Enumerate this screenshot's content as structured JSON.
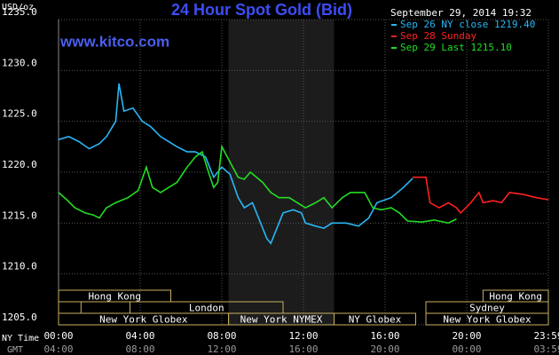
{
  "chart_data": {
    "type": "line",
    "title": "24 Hour Spot Gold (Bid)",
    "website": "www.kitco.com",
    "timestamp": "September 29, 2014 19:32",
    "y_label": "USD/oz",
    "x_label": "NY Time",
    "x2_label": "GMT",
    "xlim": [
      0,
      24
    ],
    "ylim": [
      1205,
      1235
    ],
    "yticks": [
      {
        "value": 1205,
        "label": "1205.0"
      },
      {
        "value": 1210,
        "label": "1210.0"
      },
      {
        "value": 1215,
        "label": "1215.0"
      },
      {
        "value": 1220,
        "label": "1220.0"
      },
      {
        "value": 1225,
        "label": "1225.0"
      },
      {
        "value": 1230,
        "label": "1230.0"
      },
      {
        "value": 1235,
        "label": "1235.0"
      }
    ],
    "xticks": [
      {
        "value": 0,
        "label": "00:00"
      },
      {
        "value": 4,
        "label": "04:00"
      },
      {
        "value": 8,
        "label": "08:00"
      },
      {
        "value": 12,
        "label": "12:00"
      },
      {
        "value": 16,
        "label": "16:00"
      },
      {
        "value": 20,
        "label": "20:00"
      },
      {
        "value": 24,
        "label": "23:59"
      }
    ],
    "x2ticks": [
      {
        "value": 0,
        "label": "04:00"
      },
      {
        "value": 4,
        "label": "08:00"
      },
      {
        "value": 8,
        "label": "12:00"
      },
      {
        "value": 12,
        "label": "16:00"
      },
      {
        "value": 16,
        "label": "20:00"
      },
      {
        "value": 20,
        "label": "00:00"
      },
      {
        "value": 24,
        "label": "03:59"
      }
    ],
    "grid": true,
    "highlight": [
      8.33,
      13.5
    ],
    "sessions": [
      [
        {
          "label": "Hong Kong",
          "start": 0,
          "end": 5.5
        },
        {
          "label": "Hong Kong",
          "start": 20.8,
          "end": 24
        }
      ],
      [
        {
          "start": 0,
          "end": 1.1
        },
        {
          "label": "London",
          "start": 3.5,
          "end": 11
        },
        {
          "label": "Sydney",
          "start": 18,
          "end": 24
        }
      ],
      [
        {
          "label": "New York Globex",
          "start": 0,
          "end": 8.33
        },
        {
          "label": "New York NYMEX",
          "start": 8.33,
          "end": 13.5
        },
        {
          "label": "NY Globex",
          "start": 13.5,
          "end": 17.5
        },
        {
          "label": "New York Globex",
          "start": 18,
          "end": 24
        }
      ]
    ],
    "series": [
      {
        "name": "Sep 26 NY close 1219.40",
        "color": "#29b6f6",
        "x": [
          0,
          0.5,
          1,
          1.5,
          2,
          2.35,
          2.8,
          2.96,
          3.2,
          3.65,
          4.1,
          4.5,
          5,
          5.4,
          5.8,
          6.3,
          6.7,
          7.2,
          7.6,
          8,
          8.4,
          8.8,
          9.1,
          9.5,
          9.9,
          10.2,
          10.4,
          10.7,
          11,
          11.5,
          11.9,
          12.1,
          12.6,
          13,
          13.4,
          14.1,
          14.7,
          15.2,
          15.6,
          16.3,
          16.9,
          17.35
        ],
        "values": [
          1223.2,
          1223.5,
          1223,
          1222.3,
          1222.8,
          1223.5,
          1225,
          1228.7,
          1226,
          1226.3,
          1225,
          1224.5,
          1223.5,
          1223,
          1222.5,
          1222,
          1222,
          1221.5,
          1219.5,
          1220.5,
          1219.8,
          1217.5,
          1216.5,
          1217,
          1215,
          1213.5,
          1213,
          1214.5,
          1216,
          1216.3,
          1216,
          1215,
          1214.7,
          1214.5,
          1215,
          1215,
          1214.7,
          1215.5,
          1217,
          1217.5,
          1218.5,
          1219.4
        ]
      },
      {
        "name": "Sep 28 Sunday",
        "color": "#ff2020",
        "x": [
          17.35,
          18,
          18.2,
          18.65,
          19.1,
          19.5,
          19.7,
          20.2,
          20.6,
          20.8,
          21.3,
          21.7,
          22.1,
          22.8,
          23.4,
          24
        ],
        "values": [
          1219.5,
          1219.5,
          1217,
          1216.5,
          1217,
          1216.5,
          1216,
          1217,
          1218,
          1217,
          1217.2,
          1217,
          1218,
          1217.8,
          1217.5,
          1217.3
        ]
      },
      {
        "name": "Sep 29 Last 1215.10",
        "color": "#22dd22",
        "x": [
          0,
          0.4,
          0.8,
          1.3,
          1.7,
          2,
          2.35,
          2.8,
          3.4,
          3.9,
          4.3,
          4.6,
          5,
          5.4,
          5.8,
          6.3,
          6.7,
          7.04,
          7.35,
          7.6,
          7.8,
          8,
          8.4,
          8.8,
          9.1,
          9.4,
          10,
          10.4,
          10.8,
          11.3,
          11.7,
          12.1,
          12.6,
          13,
          13.4,
          13.9,
          14.3,
          15,
          15.4,
          15.8,
          16.3,
          16.7,
          17.1,
          17.8,
          18.4,
          19.1,
          19.5
        ],
        "values": [
          1218,
          1217.3,
          1216.5,
          1216,
          1215.8,
          1215.5,
          1216.5,
          1217,
          1217.5,
          1218.2,
          1220.5,
          1218.5,
          1218,
          1218.5,
          1219,
          1220.5,
          1221.5,
          1222,
          1220,
          1218.5,
          1219,
          1222.5,
          1221,
          1219.5,
          1219.3,
          1220,
          1219,
          1218,
          1217.5,
          1217.5,
          1217,
          1216.5,
          1217,
          1217.5,
          1216.5,
          1217.5,
          1218,
          1218,
          1216.5,
          1216.3,
          1216.5,
          1216,
          1215.2,
          1215.1,
          1215.3,
          1215,
          1215.4
        ]
      }
    ]
  }
}
